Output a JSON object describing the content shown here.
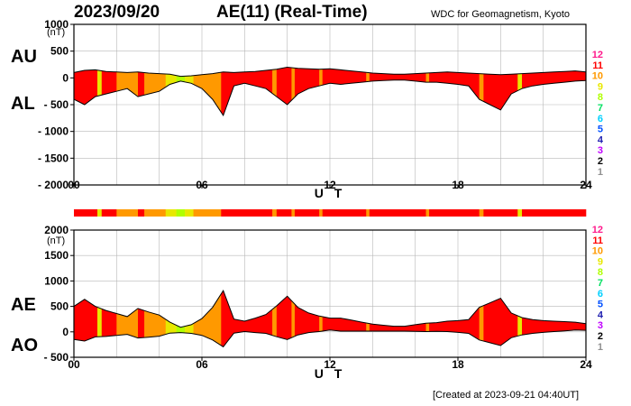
{
  "header": {
    "date": "2023/09/20",
    "title": "AE(11) (Real-Time)",
    "org": "WDC for Geomagnetism, Kyoto"
  },
  "footer": {
    "created": "[Created at 2023-09-21 04:40UT]"
  },
  "legend": {
    "levels": [
      "12",
      "11",
      "10",
      "9",
      "8",
      "7",
      "6",
      "5",
      "4",
      "3",
      "2",
      "1"
    ],
    "colors": [
      "#ff1a8c",
      "#ff0000",
      "#ff9900",
      "#e8e800",
      "#b0ff00",
      "#00e060",
      "#00d0ff",
      "#0050ff",
      "#2020b0",
      "#c000ff",
      "#000000",
      "#909090",
      "#cccccc"
    ]
  },
  "chart_data": [
    {
      "type": "area",
      "panel": "AU-AL",
      "labels": {
        "upper": "AU",
        "lower": "AL",
        "unit": "(nT)",
        "xlabel": "U T"
      },
      "ylim": [
        -2000,
        1000
      ],
      "yticks": [
        "1000",
        "500",
        "0",
        "- 500",
        "- 1000",
        "- 1500",
        "- 2000"
      ],
      "xticks": [
        "00",
        "06",
        "12",
        "18",
        "24"
      ],
      "xlim": [
        0,
        24
      ],
      "grid": true,
      "x": [
        0,
        0.5,
        1,
        1.5,
        2,
        2.5,
        3,
        3.5,
        4,
        4.5,
        5,
        5.5,
        6,
        6.5,
        7,
        7.5,
        8,
        8.5,
        9,
        9.5,
        10,
        10.5,
        11,
        11.5,
        12,
        12.5,
        13,
        13.5,
        14,
        14.5,
        15,
        15.5,
        16,
        16.5,
        17,
        17.5,
        18,
        18.5,
        19,
        19.5,
        20,
        20.5,
        21,
        21.5,
        22,
        22.5,
        23,
        23.5,
        24
      ],
      "series": [
        {
          "name": "AU",
          "values": [
            100,
            140,
            150,
            120,
            110,
            100,
            110,
            90,
            80,
            70,
            30,
            40,
            60,
            80,
            110,
            100,
            110,
            120,
            140,
            160,
            200,
            180,
            170,
            160,
            170,
            150,
            130,
            110,
            90,
            80,
            70,
            70,
            80,
            90,
            100,
            110,
            100,
            90,
            80,
            70,
            60,
            70,
            80,
            90,
            100,
            110,
            120,
            130,
            110
          ]
        },
        {
          "name": "AL",
          "values": [
            -400,
            -500,
            -350,
            -300,
            -250,
            -200,
            -350,
            -300,
            -250,
            -120,
            -60,
            -100,
            -200,
            -400,
            -700,
            -150,
            -100,
            -150,
            -200,
            -350,
            -500,
            -300,
            -200,
            -150,
            -100,
            -120,
            -100,
            -80,
            -60,
            -50,
            -40,
            -40,
            -60,
            -80,
            -80,
            -100,
            -120,
            -150,
            -400,
            -500,
            -600,
            -300,
            -200,
            -150,
            -120,
            -100,
            -80,
            -60,
            -50
          ]
        }
      ]
    },
    {
      "type": "area",
      "panel": "AE-AO",
      "labels": {
        "upper": "AE",
        "lower": "AO",
        "unit": "(nT)",
        "xlabel": "U T"
      },
      "ylim": [
        -500,
        2000
      ],
      "yticks": [
        "2000",
        "1500",
        "1000",
        "500",
        "0",
        "- 500"
      ],
      "xticks": [
        "00",
        "06",
        "12",
        "18",
        "24"
      ],
      "xlim": [
        0,
        24
      ],
      "grid": true,
      "x": [
        0,
        0.5,
        1,
        1.5,
        2,
        2.5,
        3,
        3.5,
        4,
        4.5,
        5,
        5.5,
        6,
        6.5,
        7,
        7.5,
        8,
        8.5,
        9,
        9.5,
        10,
        10.5,
        11,
        11.5,
        12,
        12.5,
        13,
        13.5,
        14,
        14.5,
        15,
        15.5,
        16,
        16.5,
        17,
        17.5,
        18,
        18.5,
        19,
        19.5,
        20,
        20.5,
        21,
        21.5,
        22,
        22.5,
        23,
        23.5,
        24
      ],
      "series": [
        {
          "name": "AE",
          "values": [
            500,
            640,
            500,
            420,
            360,
            300,
            460,
            390,
            330,
            190,
            90,
            140,
            260,
            480,
            810,
            250,
            210,
            270,
            340,
            510,
            700,
            480,
            370,
            310,
            270,
            270,
            230,
            190,
            150,
            130,
            110,
            110,
            140,
            170,
            180,
            210,
            220,
            240,
            480,
            570,
            660,
            370,
            280,
            240,
            220,
            210,
            200,
            190,
            160
          ]
        },
        {
          "name": "AO",
          "values": [
            -150,
            -180,
            -100,
            -90,
            -70,
            -50,
            -120,
            -105,
            -85,
            -25,
            -15,
            -30,
            -70,
            -160,
            -295,
            -25,
            5,
            -15,
            -30,
            -95,
            -150,
            -60,
            -15,
            5,
            35,
            15,
            15,
            15,
            15,
            15,
            15,
            15,
            10,
            5,
            10,
            5,
            -10,
            -30,
            -160,
            -215,
            -270,
            -115,
            -60,
            -30,
            -10,
            5,
            20,
            35,
            30
          ]
        }
      ]
    }
  ],
  "activity_band": {
    "segments": [
      {
        "start": 0,
        "end": 1.1,
        "level": "11"
      },
      {
        "start": 1.1,
        "end": 1.3,
        "level": "9"
      },
      {
        "start": 1.3,
        "end": 2.0,
        "level": "11"
      },
      {
        "start": 2.0,
        "end": 3.0,
        "level": "10"
      },
      {
        "start": 3.0,
        "end": 3.3,
        "level": "11"
      },
      {
        "start": 3.3,
        "end": 4.3,
        "level": "10"
      },
      {
        "start": 4.3,
        "end": 4.8,
        "level": "9"
      },
      {
        "start": 4.8,
        "end": 5.2,
        "level": "8"
      },
      {
        "start": 5.2,
        "end": 5.6,
        "level": "9"
      },
      {
        "start": 5.6,
        "end": 6.9,
        "level": "10"
      },
      {
        "start": 6.9,
        "end": 9.3,
        "level": "11"
      },
      {
        "start": 9.3,
        "end": 9.5,
        "level": "10"
      },
      {
        "start": 9.5,
        "end": 10.2,
        "level": "11"
      },
      {
        "start": 10.2,
        "end": 10.35,
        "level": "10"
      },
      {
        "start": 10.35,
        "end": 11.5,
        "level": "11"
      },
      {
        "start": 11.5,
        "end": 11.65,
        "level": "10"
      },
      {
        "start": 11.65,
        "end": 13.7,
        "level": "11"
      },
      {
        "start": 13.7,
        "end": 13.85,
        "level": "10"
      },
      {
        "start": 13.85,
        "end": 16.5,
        "level": "11"
      },
      {
        "start": 16.5,
        "end": 16.65,
        "level": "10"
      },
      {
        "start": 16.65,
        "end": 19.0,
        "level": "11"
      },
      {
        "start": 19.0,
        "end": 19.2,
        "level": "10"
      },
      {
        "start": 19.2,
        "end": 20.8,
        "level": "11"
      },
      {
        "start": 20.8,
        "end": 21.0,
        "level": "9"
      },
      {
        "start": 21.0,
        "end": 24.0,
        "level": "11"
      }
    ]
  }
}
